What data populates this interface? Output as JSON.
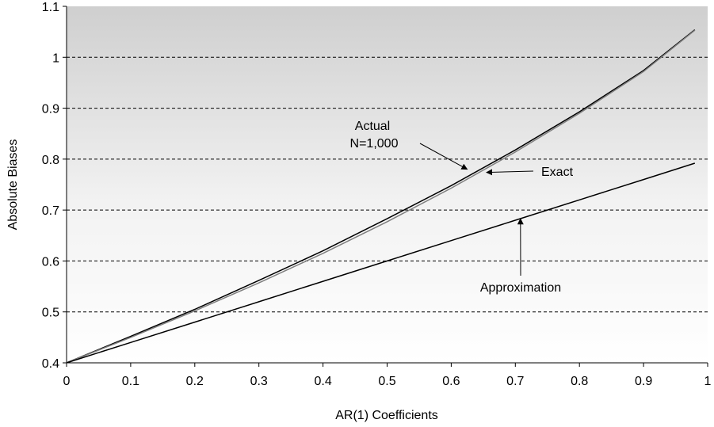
{
  "chart_data": {
    "type": "line",
    "title": "",
    "xlabel": "AR(1) Coefficients",
    "ylabel": "Absolute Biases",
    "xlim": [
      0,
      1
    ],
    "ylim": [
      0.4,
      1.1
    ],
    "x_ticks": [
      "0",
      "0.1",
      "0.2",
      "0.3",
      "0.4",
      "0.5",
      "0.6",
      "0.7",
      "0.8",
      "0.9",
      "1"
    ],
    "y_ticks": [
      "0.4",
      "0.5",
      "0.6",
      "0.7",
      "0.8",
      "0.9",
      "1",
      "1.1"
    ],
    "grid": "horizontal dashed",
    "background": "gradient gray",
    "series": [
      {
        "key": "actual",
        "color": "#000000",
        "x": [
          0,
          0.1,
          0.2,
          0.3,
          0.4,
          0.5,
          0.6,
          0.7,
          0.8,
          0.9,
          0.98
        ],
        "y": [
          0.4,
          0.452,
          0.505,
          0.562,
          0.62,
          0.683,
          0.748,
          0.818,
          0.893,
          0.974,
          1.054
        ]
      },
      {
        "key": "exact",
        "color": "#7f7f7f",
        "x": [
          0,
          0.1,
          0.2,
          0.3,
          0.4,
          0.5,
          0.6,
          0.7,
          0.8,
          0.9,
          0.98
        ],
        "y": [
          0.4,
          0.45,
          0.502,
          0.557,
          0.615,
          0.677,
          0.743,
          0.814,
          0.89,
          0.972,
          1.053
        ]
      },
      {
        "key": "approximation",
        "color": "#000000",
        "x": [
          0,
          0.1,
          0.2,
          0.3,
          0.4,
          0.5,
          0.6,
          0.7,
          0.8,
          0.9,
          0.98
        ],
        "y": [
          0.4,
          0.44,
          0.48,
          0.52,
          0.56,
          0.6,
          0.64,
          0.68,
          0.72,
          0.76,
          0.792
        ]
      }
    ],
    "annotations": [
      {
        "key": "actual",
        "lines": [
          "Actual",
          "N=1,000"
        ],
        "target": [
          0.625,
          0.78
        ]
      },
      {
        "key": "exact",
        "lines": [
          "Exact"
        ],
        "target": [
          0.655,
          0.774
        ]
      },
      {
        "key": "approximation",
        "lines": [
          "Approximation"
        ],
        "target": [
          0.708,
          0.683
        ]
      }
    ]
  }
}
